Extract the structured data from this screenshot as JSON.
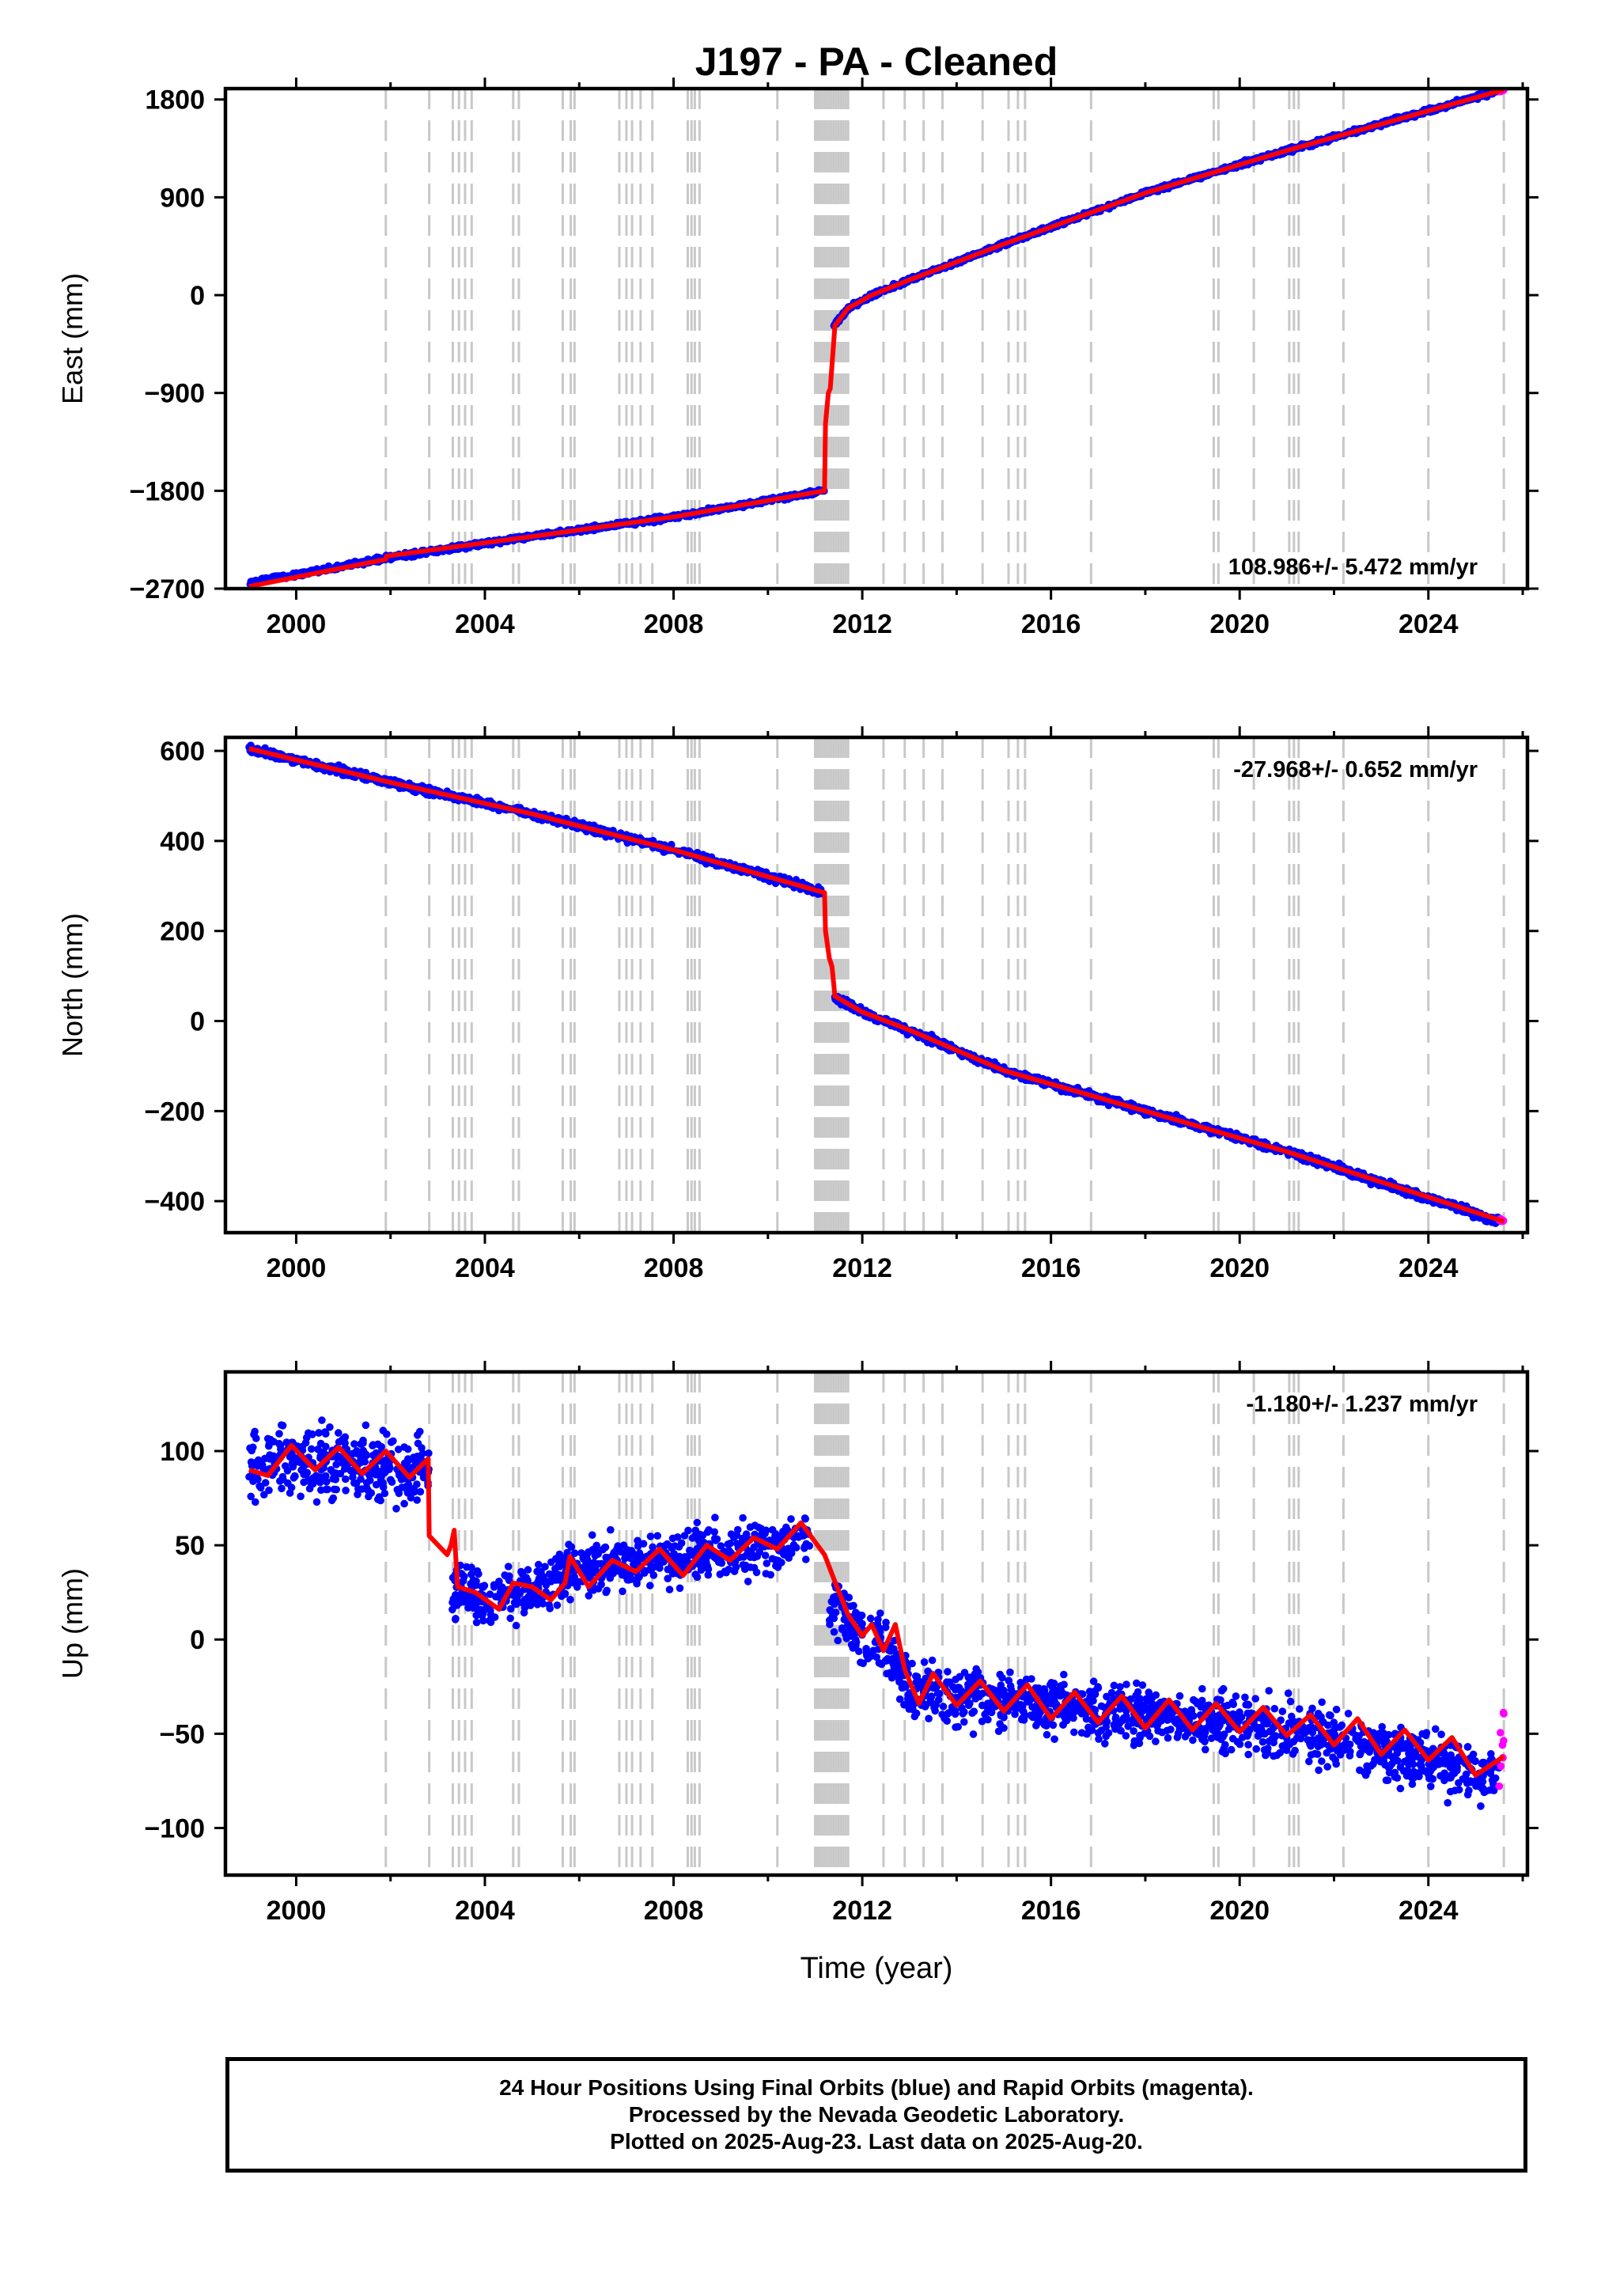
{
  "title": "J197  - PA - Cleaned",
  "xlabel": "Time (year)",
  "colors": {
    "final": "#0000ff",
    "rapid": "#ff00ff",
    "model": "#ff0000",
    "event_lines": "#c8c8c8",
    "frame": "#000000"
  },
  "event_years": [
    2001.9,
    2002.82,
    2003.32,
    2003.45,
    2003.58,
    2003.72,
    2004.6,
    2004.72,
    2005.65,
    2005.82,
    2005.9,
    2006.85,
    2007.0,
    2007.12,
    2007.3,
    2007.55,
    2008.3,
    2008.38,
    2008.45,
    2008.55,
    2010.2,
    2011.0,
    2011.05,
    2011.1,
    2011.15,
    2011.2,
    2011.25,
    2011.3,
    2011.35,
    2011.4,
    2011.45,
    2011.5,
    2011.55,
    2011.6,
    2011.65,
    2011.7,
    2012.45,
    2012.9,
    2013.3,
    2013.7,
    2014.55,
    2015.1,
    2015.3,
    2015.45,
    2016.85,
    2019.45,
    2019.55,
    2020.3,
    2021.05,
    2021.15,
    2021.25,
    2022.2,
    2024.0,
    2025.6
  ],
  "chart_data": [
    {
      "type": "scatter",
      "panel": "east",
      "ylabel": "East (mm)",
      "xlim": [
        1998.5,
        2026.1
      ],
      "ylim": [
        -2700,
        1900
      ],
      "x_ticks": [
        "2000",
        "2004",
        "2008",
        "2012",
        "2016",
        "2020",
        "2024"
      ],
      "y_ticks": [
        "1800",
        "900",
        "0",
        "−900",
        "−1800",
        "−2700"
      ],
      "rate_text": "108.986+/- 5.472 mm/yr",
      "rate_position": "bottom-right",
      "series": [
        {
          "label": "final",
          "x": [
            1999.0,
            2001.9,
            2005.0,
            2008.0,
            2011.2
          ],
          "y": [
            -2650,
            -2420,
            -2220,
            -2040,
            -1800
          ],
          "noise": 12
        },
        {
          "label": "final",
          "x": [
            2011.4,
            2011.7,
            2012.2,
            2013.0,
            2015.0,
            2018.0,
            2021.0,
            2025.5
          ],
          "y": [
            -280,
            -120,
            0,
            140,
            470,
            940,
            1330,
            1880
          ],
          "noise": 12
        },
        {
          "label": "rapid",
          "x": [
            2025.5,
            2025.6
          ],
          "y": [
            1870,
            1890
          ],
          "noise": 4
        }
      ],
      "model": {
        "x": [
          1999.0,
          2001.9,
          2001.92,
          2005.0,
          2008.0,
          2011.2,
          2011.22,
          2011.28,
          2011.32,
          2011.38,
          2011.42,
          2011.7,
          2012.2,
          2013.0,
          2015.0,
          2018.0,
          2021.0,
          2025.6
        ],
        "y": [
          -2680,
          -2430,
          -2400,
          -2220,
          -2040,
          -1800,
          -1180,
          -900,
          -860,
          -520,
          -280,
          -120,
          0,
          140,
          470,
          940,
          1330,
          1890
        ]
      }
    },
    {
      "type": "scatter",
      "panel": "north",
      "ylabel": "North (mm)",
      "xlim": [
        1998.5,
        2026.1
      ],
      "ylim": [
        -470,
        630
      ],
      "x_ticks": [
        "2000",
        "2004",
        "2008",
        "2012",
        "2016",
        "2020",
        "2024"
      ],
      "y_ticks": [
        "600",
        "400",
        "200",
        "0",
        "−200",
        "−400"
      ],
      "rate_text": "-27.968+/- 0.652 mm/yr",
      "rate_position": "top-right",
      "series": [
        {
          "label": "final",
          "x": [
            1999.0,
            2002.0,
            2005.0,
            2008.0,
            2011.2
          ],
          "y": [
            605,
            530,
            460,
            380,
            285
          ],
          "noise": 5
        },
        {
          "label": "final",
          "x": [
            2011.4,
            2012.0,
            2013.0,
            2015.0,
            2018.0,
            2021.0,
            2025.5
          ],
          "y": [
            55,
            20,
            -20,
            -110,
            -200,
            -290,
            -445
          ],
          "noise": 5
        },
        {
          "label": "rapid",
          "x": [
            2025.5,
            2025.6
          ],
          "y": [
            -440,
            -445
          ],
          "noise": 2
        }
      ],
      "model": {
        "x": [
          1999.0,
          2002.0,
          2005.0,
          2008.0,
          2011.2,
          2011.22,
          2011.3,
          2011.36,
          2011.42,
          2012.0,
          2013.0,
          2015.0,
          2018.0,
          2021.0,
          2025.6
        ],
        "y": [
          605,
          530,
          460,
          380,
          285,
          200,
          140,
          120,
          55,
          20,
          -20,
          -110,
          -200,
          -290,
          -445
        ]
      }
    },
    {
      "type": "scatter",
      "panel": "up",
      "ylabel": "Up (mm)",
      "xlim": [
        1998.5,
        2026.1
      ],
      "ylim": [
        -125,
        142
      ],
      "x_ticks": [
        "2000",
        "2004",
        "2008",
        "2012",
        "2016",
        "2020",
        "2024"
      ],
      "y_ticks": [
        "100",
        "50",
        "0",
        "−50",
        "−100"
      ],
      "rate_text": "-1.180+/- 1.237 mm/yr",
      "rate_position": "top-right",
      "series": [
        {
          "label": "final",
          "x": [
            1999.0,
            2000.0,
            2001.0,
            2002.0,
            2002.82
          ],
          "y": [
            92,
            95,
            93,
            90,
            88
          ],
          "noise": 11
        },
        {
          "label": "final",
          "x": [
            2003.3,
            2004.0,
            2005.0,
            2006.0,
            2007.0,
            2008.0,
            2009.0,
            2010.0,
            2010.9
          ],
          "y": [
            25,
            22,
            25,
            38,
            40,
            44,
            47,
            50,
            58
          ],
          "noise": 8
        },
        {
          "label": "final",
          "x": [
            2011.3,
            2012.0,
            2012.5,
            2013.0,
            2015.0,
            2018.0,
            2021.0,
            2023.0,
            2025.5
          ],
          "y": [
            20,
            2,
            -4,
            -28,
            -32,
            -40,
            -48,
            -58,
            -72
          ],
          "noise": 9
        },
        {
          "label": "rapid",
          "x": [
            2025.5,
            2025.6
          ],
          "y": [
            -72,
            -48
          ],
          "noise": 8
        }
      ],
      "model": {
        "x": [
          1999.0,
          1999.4,
          1999.9,
          2000.4,
          2000.9,
          2001.4,
          2001.9,
          2002.4,
          2002.8,
          2002.82,
          2003.2,
          2003.28,
          2003.35,
          2003.42,
          2003.8,
          2004.3,
          2004.6,
          2005.0,
          2005.4,
          2005.7,
          2005.8,
          2006.2,
          2006.7,
          2007.2,
          2007.7,
          2008.2,
          2008.7,
          2009.2,
          2009.7,
          2010.2,
          2010.7,
          2011.2,
          2011.4,
          2011.7,
          2012.0,
          2012.2,
          2012.45,
          2012.7,
          2012.9,
          2013.2,
          2013.5,
          2014.0,
          2014.5,
          2015.0,
          2015.5,
          2016.0,
          2016.5,
          2017.0,
          2017.5,
          2018.0,
          2018.5,
          2019.0,
          2019.5,
          2020.0,
          2020.5,
          2021.0,
          2021.5,
          2022.0,
          2022.5,
          2023.0,
          2023.5,
          2024.0,
          2024.5,
          2025.0,
          2025.6
        ],
        "y": [
          90,
          87,
          103,
          90,
          102,
          88,
          100,
          86,
          96,
          55,
          45,
          50,
          58,
          28,
          25,
          16,
          30,
          28,
          21,
          30,
          44,
          28,
          42,
          36,
          48,
          34,
          50,
          42,
          54,
          48,
          62,
          45,
          32,
          13,
          2,
          8,
          -6,
          8,
          -16,
          -34,
          -18,
          -35,
          -22,
          -38,
          -24,
          -42,
          -28,
          -44,
          -30,
          -47,
          -32,
          -48,
          -34,
          -49,
          -36,
          -51,
          -40,
          -56,
          -42,
          -61,
          -48,
          -64,
          -52,
          -72,
          -62
        ]
      }
    }
  ],
  "footer": {
    "line1": "24 Hour Positions Using Final Orbits (blue) and Rapid Orbits (magenta).",
    "line2": "Processed by the Nevada Geodetic Laboratory.",
    "line3": "Plotted on 2025-Aug-23. Last data on 2025-Aug-20."
  }
}
